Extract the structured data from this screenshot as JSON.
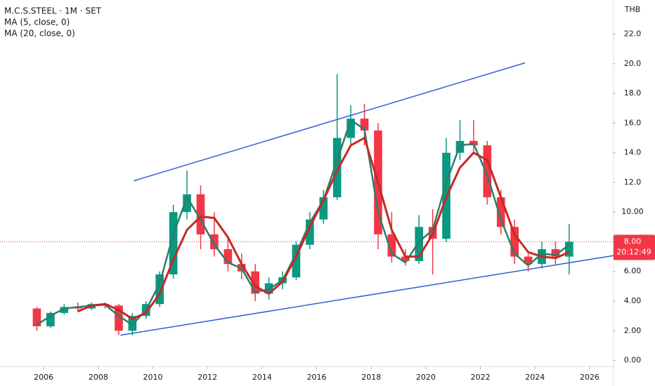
{
  "chart_data": {
    "type": "candlestick",
    "title": "M.C.S.STEEL · 1M · SET",
    "currency": "THB",
    "x": [
      2005.75,
      2006.25,
      2006.75,
      2007.25,
      2007.75,
      2008.25,
      2008.75,
      2009.25,
      2009.75,
      2010.25,
      2010.75,
      2011.25,
      2011.75,
      2012.25,
      2012.75,
      2013.25,
      2013.75,
      2014.25,
      2014.75,
      2015.25,
      2015.75,
      2016.25,
      2016.75,
      2017.25,
      2017.75,
      2018.25,
      2018.75,
      2019.25,
      2019.75,
      2020.25,
      2020.75,
      2021.25,
      2021.75,
      2022.25,
      2022.75,
      2023.25,
      2023.75,
      2024.25,
      2024.75,
      2025.25
    ],
    "open": [
      3.5,
      2.3,
      3.2,
      3.6,
      3.5,
      3.8,
      3.7,
      2.0,
      3.0,
      3.8,
      5.8,
      10.0,
      11.2,
      8.5,
      7.5,
      6.5,
      6.0,
      4.5,
      5.2,
      5.6,
      7.8,
      9.5,
      11.0,
      15.0,
      16.3,
      15.5,
      8.5,
      7.0,
      6.7,
      9.0,
      8.2,
      14.0,
      14.8,
      14.5,
      11.0,
      9.0,
      7.0,
      6.5,
      7.5,
      7.0
    ],
    "high": [
      3.6,
      3.3,
      3.8,
      3.9,
      3.9,
      3.9,
      3.8,
      3.2,
      4.0,
      6.0,
      10.5,
      12.8,
      11.8,
      10.0,
      8.2,
      7.2,
      6.5,
      5.6,
      6.0,
      8.0,
      10.0,
      11.5,
      19.3,
      17.2,
      17.3,
      16.0,
      10.0,
      7.5,
      9.8,
      10.2,
      15.0,
      16.2,
      16.2,
      14.8,
      11.5,
      9.5,
      7.2,
      8.0,
      8.0,
      9.2
    ],
    "low": [
      2.0,
      2.2,
      3.1,
      3.3,
      3.4,
      3.5,
      1.7,
      1.7,
      2.8,
      3.6,
      5.5,
      9.5,
      7.5,
      7.0,
      6.0,
      5.5,
      4.0,
      4.1,
      4.8,
      5.4,
      7.5,
      9.2,
      10.8,
      14.5,
      14.5,
      7.5,
      6.6,
      6.4,
      6.5,
      5.8,
      8.0,
      13.5,
      14.0,
      10.5,
      8.5,
      6.5,
      6.0,
      6.2,
      6.5,
      5.8
    ],
    "close": [
      2.3,
      3.2,
      3.6,
      3.5,
      3.8,
      3.7,
      2.0,
      3.0,
      3.8,
      5.8,
      10.0,
      11.2,
      8.5,
      7.5,
      6.5,
      6.0,
      4.5,
      5.2,
      5.6,
      7.8,
      9.5,
      11.0,
      15.0,
      16.3,
      15.5,
      8.5,
      7.0,
      6.7,
      9.0,
      8.2,
      14.0,
      14.8,
      14.5,
      11.0,
      9.0,
      7.0,
      6.5,
      7.5,
      7.0,
      8.0
    ],
    "up_color": "#089981",
    "down_color": "#f23645",
    "series": [
      {
        "name": "MA (5, close, 0)",
        "color": "#2e7d6b",
        "values": [
          2.4,
          3.0,
          3.5,
          3.6,
          3.7,
          3.75,
          3.0,
          2.4,
          3.4,
          5.2,
          8.5,
          11.0,
          9.5,
          7.8,
          6.6,
          6.2,
          4.6,
          4.8,
          5.4,
          7.2,
          9.3,
          10.8,
          13.5,
          16.2,
          15.6,
          10.0,
          7.2,
          6.6,
          8.0,
          8.8,
          12.0,
          14.5,
          14.6,
          12.5,
          9.5,
          7.2,
          6.4,
          7.2,
          7.1,
          7.8
        ]
      },
      {
        "name": "MA (20, close, 0)",
        "color": "#c62828",
        "values": [
          null,
          null,
          null,
          3.3,
          3.7,
          3.8,
          3.4,
          2.8,
          3.2,
          4.5,
          6.8,
          8.8,
          9.7,
          9.6,
          8.3,
          6.5,
          5.0,
          4.5,
          5.3,
          7.0,
          9.0,
          10.8,
          12.8,
          14.5,
          15.0,
          12.0,
          8.8,
          7.0,
          7.0,
          8.5,
          11.0,
          13.0,
          14.0,
          13.5,
          11.0,
          8.5,
          7.3,
          7.0,
          6.9,
          7.3
        ]
      }
    ],
    "trendlines": [
      {
        "x": [
          2009.3,
          2023.63
        ],
        "y": [
          12.11,
          20.06
        ],
        "color": "#2f5fd6"
      },
      {
        "x": [
          2008.81,
          2028.4
        ],
        "y": [
          1.7,
          7.52
        ],
        "color": "#2f5fd6"
      }
    ],
    "last_price": {
      "value": 8,
      "label": "8.00"
    },
    "countdown": "20:12:49",
    "xlim": [
      2004.4,
      2026.85
    ],
    "ylim": [
      -0.4,
      24.3
    ],
    "xticks": [
      2006,
      2008,
      2010,
      2012,
      2014,
      2016,
      2018,
      2020,
      2022,
      2024,
      2026
    ],
    "yticks": [
      {
        "value": 0,
        "label": "0.00"
      },
      {
        "value": 2,
        "label": "2.00"
      },
      {
        "value": 4,
        "label": "4.00"
      },
      {
        "value": 6,
        "label": "6.00"
      },
      {
        "value": 8,
        "label": "8.00"
      },
      {
        "value": 10,
        "label": "10.00"
      },
      {
        "value": 12,
        "label": "12.0"
      },
      {
        "value": 14,
        "label": "14.0"
      },
      {
        "value": 16,
        "label": "16.0"
      },
      {
        "value": 18,
        "label": "18.0"
      },
      {
        "value": 20,
        "label": "20.0"
      },
      {
        "value": 22,
        "label": "22.0"
      }
    ],
    "grid": false
  }
}
